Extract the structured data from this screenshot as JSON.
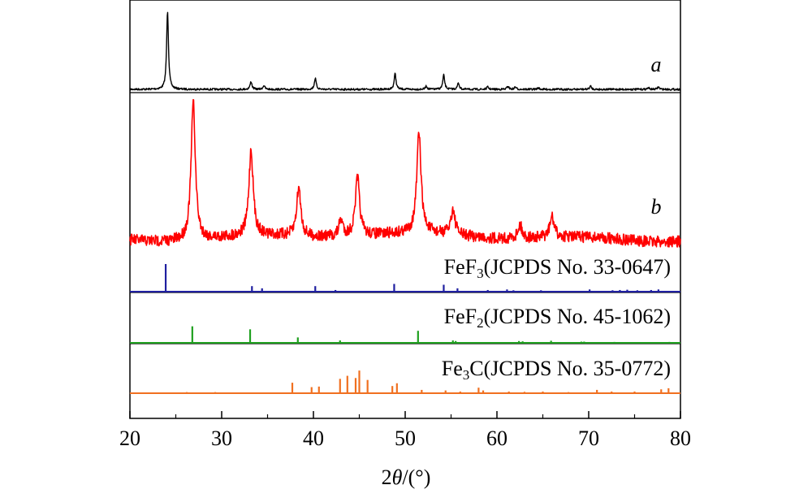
{
  "chart_data": {
    "type": "line",
    "xlabel": {
      "prefix": "2",
      "theta": "θ",
      "suffix": "/(°)"
    },
    "xlim": [
      20,
      80
    ],
    "x_ticks": [
      "20",
      "30",
      "40",
      "50",
      "60",
      "70",
      "80"
    ],
    "series": [
      {
        "name": "a",
        "color": "#000000",
        "peaks": [
          {
            "x": 24.1,
            "h": 1.0
          },
          {
            "x": 33.2,
            "h": 0.1
          },
          {
            "x": 34.6,
            "h": 0.05
          },
          {
            "x": 40.2,
            "h": 0.14
          },
          {
            "x": 48.9,
            "h": 0.2
          },
          {
            "x": 52.3,
            "h": 0.04
          },
          {
            "x": 54.2,
            "h": 0.18
          },
          {
            "x": 55.8,
            "h": 0.08
          },
          {
            "x": 59.0,
            "h": 0.03
          },
          {
            "x": 61.2,
            "h": 0.04
          },
          {
            "x": 62.0,
            "h": 0.03
          },
          {
            "x": 64.5,
            "h": 0.02
          },
          {
            "x": 70.2,
            "h": 0.04
          },
          {
            "x": 76.5,
            "h": 0.02
          },
          {
            "x": 77.6,
            "h": 0.03
          }
        ]
      },
      {
        "name": "b",
        "color": "#ff0000",
        "peaks": [
          {
            "x": 26.9,
            "h": 1.0
          },
          {
            "x": 33.2,
            "h": 0.62
          },
          {
            "x": 38.4,
            "h": 0.35
          },
          {
            "x": 43.0,
            "h": 0.12
          },
          {
            "x": 44.8,
            "h": 0.42
          },
          {
            "x": 51.5,
            "h": 0.72
          },
          {
            "x": 55.2,
            "h": 0.18
          },
          {
            "x": 62.5,
            "h": 0.1
          },
          {
            "x": 66.0,
            "h": 0.15
          }
        ]
      }
    ],
    "references": [
      {
        "formula_base": "FeF",
        "formula_sub": "3",
        "card": "(JCPDS No. 33-0647)",
        "color": "#1f1fa0",
        "lines": [
          {
            "x": 23.9,
            "h": 1.0
          },
          {
            "x": 33.3,
            "h": 0.2
          },
          {
            "x": 34.4,
            "h": 0.12
          },
          {
            "x": 40.2,
            "h": 0.2
          },
          {
            "x": 42.4,
            "h": 0.06
          },
          {
            "x": 48.8,
            "h": 0.28
          },
          {
            "x": 54.2,
            "h": 0.25
          },
          {
            "x": 55.7,
            "h": 0.12
          },
          {
            "x": 59.0,
            "h": 0.06
          },
          {
            "x": 61.1,
            "h": 0.08
          },
          {
            "x": 61.8,
            "h": 0.05
          },
          {
            "x": 64.8,
            "h": 0.05
          },
          {
            "x": 70.1,
            "h": 0.08
          },
          {
            "x": 72.6,
            "h": 0.05
          },
          {
            "x": 73.4,
            "h": 0.06
          },
          {
            "x": 74.2,
            "h": 0.07
          },
          {
            "x": 75.3,
            "h": 0.05
          },
          {
            "x": 76.8,
            "h": 0.06
          },
          {
            "x": 77.6,
            "h": 0.08
          }
        ]
      },
      {
        "formula_base": "FeF",
        "formula_sub": "2",
        "card": "(JCPDS No. 45-1062)",
        "color": "#1fa01f",
        "lines": [
          {
            "x": 26.8,
            "h": 0.55
          },
          {
            "x": 33.1,
            "h": 0.45
          },
          {
            "x": 38.3,
            "h": 0.18
          },
          {
            "x": 42.9,
            "h": 0.08
          },
          {
            "x": 51.4,
            "h": 0.4
          },
          {
            "x": 55.2,
            "h": 0.08
          },
          {
            "x": 55.5,
            "h": 0.06
          },
          {
            "x": 62.4,
            "h": 0.06
          },
          {
            "x": 62.8,
            "h": 0.05
          },
          {
            "x": 65.9,
            "h": 0.07
          },
          {
            "x": 69.2,
            "h": 0.04
          },
          {
            "x": 69.5,
            "h": 0.04
          },
          {
            "x": 72.8,
            "h": 0.03
          },
          {
            "x": 78.8,
            "h": 0.03
          }
        ]
      },
      {
        "formula_base": "Fe",
        "formula_sub": "3",
        "formula_tail": "C",
        "card": "(JCPDS No. 35-0772)",
        "color": "#f07020",
        "lines": [
          {
            "x": 26.2,
            "h": 0.04
          },
          {
            "x": 29.3,
            "h": 0.04
          },
          {
            "x": 37.7,
            "h": 0.38
          },
          {
            "x": 39.8,
            "h": 0.22
          },
          {
            "x": 40.6,
            "h": 0.24
          },
          {
            "x": 42.9,
            "h": 0.52
          },
          {
            "x": 43.7,
            "h": 0.63
          },
          {
            "x": 44.6,
            "h": 0.55
          },
          {
            "x": 45.0,
            "h": 0.82
          },
          {
            "x": 45.9,
            "h": 0.48
          },
          {
            "x": 48.6,
            "h": 0.26
          },
          {
            "x": 49.1,
            "h": 0.36
          },
          {
            "x": 51.8,
            "h": 0.12
          },
          {
            "x": 54.4,
            "h": 0.1
          },
          {
            "x": 56.0,
            "h": 0.06
          },
          {
            "x": 58.0,
            "h": 0.2
          },
          {
            "x": 58.5,
            "h": 0.1
          },
          {
            "x": 61.3,
            "h": 0.06
          },
          {
            "x": 63.0,
            "h": 0.05
          },
          {
            "x": 65.0,
            "h": 0.06
          },
          {
            "x": 67.8,
            "h": 0.04
          },
          {
            "x": 70.9,
            "h": 0.12
          },
          {
            "x": 72.5,
            "h": 0.06
          },
          {
            "x": 75.0,
            "h": 0.06
          },
          {
            "x": 77.9,
            "h": 0.14
          },
          {
            "x": 78.7,
            "h": 0.18
          }
        ]
      }
    ]
  }
}
